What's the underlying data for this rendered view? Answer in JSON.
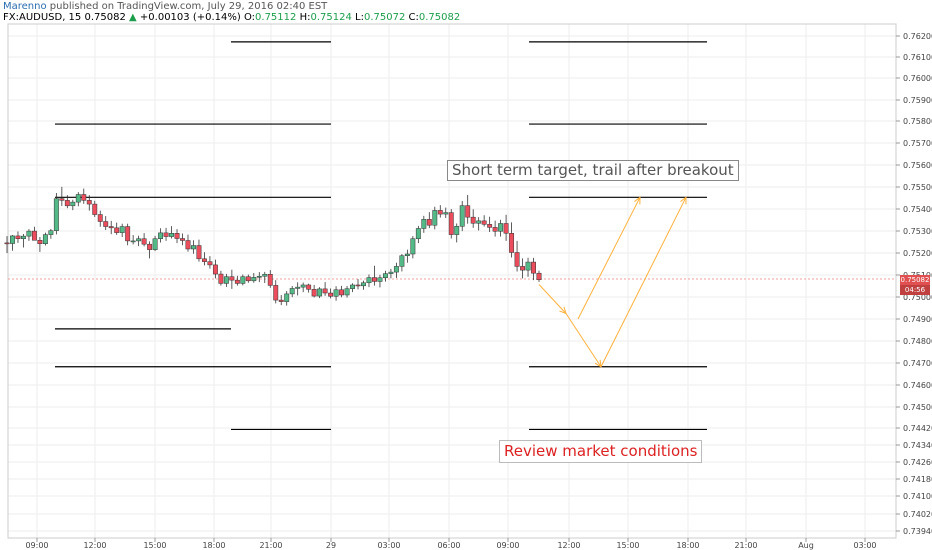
{
  "header": {
    "author": "Marenno",
    "published": "published on TradingView.com, July 29, 2016 02:40 EST",
    "symbol": "FX:AUDUSD, 15",
    "last": "0.75082",
    "arrow": "▲",
    "change": "+0.00103 (+0.14%)",
    "o_label": "O:",
    "o_value": "0.75112",
    "h_label": "H:",
    "h_value": "0.75124",
    "l_label": "L:",
    "l_value": "0.75072",
    "c_label": "C:",
    "c_value": "0.75082"
  },
  "annotations": {
    "target": "Short term target, trail after breakout",
    "review": "Review market conditions"
  },
  "price_badge": {
    "price": "0.75082",
    "countdown": "04:56"
  },
  "colors": {
    "up": "#53b987",
    "down": "#eb4d5c",
    "arrow": "#ffb13b",
    "level": "#000000",
    "grid": "#eeeeee"
  },
  "chart_data": {
    "type": "candlestick",
    "y_ticks": [
      "0.76200",
      "0.76100",
      "0.76000",
      "0.75900",
      "0.75800",
      "0.75700",
      "0.75600",
      "0.75500",
      "0.75400",
      "0.75300",
      "0.75200",
      "0.75100",
      "0.75000",
      "0.74900",
      "0.74800",
      "0.74700",
      "0.74600",
      "0.74500",
      "0.74420",
      "0.74340",
      "0.74260",
      "0.74180",
      "0.74100",
      "0.74020",
      "0.73940"
    ],
    "x_ticks": [
      "09:00",
      "12:00",
      "15:00",
      "18:00",
      "21:00",
      "29",
      "03:00",
      "06:00",
      "09:00",
      "12:00",
      "15:00",
      "18:00",
      "21:00",
      "Aug",
      "03:00"
    ],
    "horizontal_levels": [
      {
        "price": 0.76173,
        "from": "17:30",
        "to": "29"
      },
      {
        "price": 0.76173,
        "from": "09:00",
        "to": "18:00"
      },
      {
        "price": 0.75796,
        "from": "10:00",
        "to": "29"
      },
      {
        "price": 0.75796,
        "from": "09:00",
        "to": "18:00"
      },
      {
        "price": 0.7546,
        "from": "10:00",
        "to": "29"
      },
      {
        "price": 0.7546,
        "from": "09:00",
        "to": "18:00"
      },
      {
        "price": 0.74855,
        "from": "10:00",
        "to": "17:30"
      },
      {
        "price": 0.74683,
        "from": "10:00",
        "to": "29"
      },
      {
        "price": 0.74683,
        "from": "09:00",
        "to": "18:00"
      },
      {
        "price": 0.74398,
        "from": "17:30",
        "to": "29"
      },
      {
        "price": 0.74398,
        "from": "09:00",
        "to": "18:00"
      }
    ],
    "candles": [
      [
        0.75251,
        0.75282,
        0.75204,
        0.75248
      ],
      [
        0.75248,
        0.75287,
        0.75215,
        0.75283
      ],
      [
        0.75283,
        0.75303,
        0.75251,
        0.7527
      ],
      [
        0.7527,
        0.75292,
        0.7523,
        0.75282
      ],
      [
        0.75282,
        0.75314,
        0.7526,
        0.75305
      ],
      [
        0.75305,
        0.75325,
        0.75265,
        0.75263
      ],
      [
        0.75263,
        0.75278,
        0.7521,
        0.75247
      ],
      [
        0.75247,
        0.75298,
        0.75239,
        0.75289
      ],
      [
        0.75289,
        0.75315,
        0.7527,
        0.75307
      ],
      [
        0.75307,
        0.7548,
        0.7529,
        0.75454
      ],
      [
        0.75454,
        0.75508,
        0.7542,
        0.75446
      ],
      [
        0.75446,
        0.7547,
        0.7541,
        0.75421
      ],
      [
        0.75421,
        0.75449,
        0.75401,
        0.75438
      ],
      [
        0.75438,
        0.75484,
        0.75419,
        0.75473
      ],
      [
        0.75473,
        0.755,
        0.7543,
        0.75446
      ],
      [
        0.75446,
        0.7547,
        0.75399,
        0.75429
      ],
      [
        0.75429,
        0.75444,
        0.7537,
        0.75381
      ],
      [
        0.75381,
        0.75399,
        0.75325,
        0.75349
      ],
      [
        0.75349,
        0.75374,
        0.7531,
        0.75326
      ],
      [
        0.75326,
        0.75352,
        0.75291,
        0.7532
      ],
      [
        0.7532,
        0.75344,
        0.75288,
        0.75298
      ],
      [
        0.75298,
        0.75339,
        0.75278,
        0.75326
      ],
      [
        0.75326,
        0.75339,
        0.7524,
        0.7526
      ],
      [
        0.7526,
        0.75287,
        0.75244,
        0.7526
      ],
      [
        0.7526,
        0.75284,
        0.75236,
        0.7527
      ],
      [
        0.7527,
        0.75296,
        0.75235,
        0.75245
      ],
      [
        0.75245,
        0.75258,
        0.7518,
        0.7522
      ],
      [
        0.7522,
        0.75283,
        0.75213,
        0.7527
      ],
      [
        0.7527,
        0.75318,
        0.75253,
        0.75297
      ],
      [
        0.75297,
        0.7532,
        0.7526,
        0.7528
      ],
      [
        0.7528,
        0.75328,
        0.75271,
        0.75295
      ],
      [
        0.75295,
        0.75314,
        0.7525,
        0.75271
      ],
      [
        0.75271,
        0.75294,
        0.7524,
        0.75262
      ],
      [
        0.75262,
        0.75289,
        0.75211,
        0.75223
      ],
      [
        0.75223,
        0.75263,
        0.75201,
        0.75239
      ],
      [
        0.75239,
        0.75266,
        0.75165,
        0.75178
      ],
      [
        0.75178,
        0.75208,
        0.75148,
        0.75165
      ],
      [
        0.75165,
        0.7519,
        0.75133,
        0.7515
      ],
      [
        0.7515,
        0.75174,
        0.75088,
        0.75108
      ],
      [
        0.75108,
        0.75123,
        0.75055,
        0.75065
      ],
      [
        0.75065,
        0.75109,
        0.75049,
        0.75096
      ],
      [
        0.75096,
        0.75128,
        0.7504,
        0.7508
      ],
      [
        0.7508,
        0.751,
        0.75055,
        0.75065
      ],
      [
        0.75065,
        0.75106,
        0.75056,
        0.75096
      ],
      [
        0.75096,
        0.75106,
        0.75068,
        0.75077
      ],
      [
        0.75077,
        0.75113,
        0.75068,
        0.75093
      ],
      [
        0.75093,
        0.75117,
        0.75071,
        0.75098
      ],
      [
        0.75098,
        0.75118,
        0.75067,
        0.75107
      ],
      [
        0.75107,
        0.75126,
        0.75045,
        0.75056
      ],
      [
        0.75056,
        0.7508,
        0.74971,
        0.74986
      ],
      [
        0.74986,
        0.75012,
        0.74963,
        0.74979
      ],
      [
        0.74979,
        0.7503,
        0.74961,
        0.75017
      ],
      [
        0.75017,
        0.75053,
        0.75002,
        0.75042
      ],
      [
        0.75042,
        0.7507,
        0.7501,
        0.75048
      ],
      [
        0.75048,
        0.75069,
        0.75025,
        0.75058
      ],
      [
        0.75058,
        0.75064,
        0.75023,
        0.75038
      ],
      [
        0.75038,
        0.75058,
        0.74998,
        0.75007
      ],
      [
        0.75007,
        0.75048,
        0.74995,
        0.7504
      ],
      [
        0.7504,
        0.75071,
        0.75008,
        0.75021
      ],
      [
        0.75021,
        0.75042,
        0.74994,
        0.75006
      ],
      [
        0.75006,
        0.75052,
        0.74983,
        0.75036
      ],
      [
        0.75036,
        0.75054,
        0.74999,
        0.75012
      ],
      [
        0.75012,
        0.75053,
        0.75,
        0.75041
      ],
      [
        0.75041,
        0.75066,
        0.75025,
        0.75058
      ],
      [
        0.75058,
        0.75085,
        0.75038,
        0.75054
      ],
      [
        0.75054,
        0.75078,
        0.75036,
        0.75068
      ],
      [
        0.75068,
        0.75106,
        0.75048,
        0.75092
      ],
      [
        0.75092,
        0.75146,
        0.75055,
        0.75074
      ],
      [
        0.75074,
        0.75105,
        0.75047,
        0.75091
      ],
      [
        0.75091,
        0.75123,
        0.75073,
        0.7511
      ],
      [
        0.7511,
        0.75132,
        0.75088,
        0.75117
      ],
      [
        0.75117,
        0.7516,
        0.7509,
        0.75143
      ],
      [
        0.75143,
        0.752,
        0.7512,
        0.75192
      ],
      [
        0.75192,
        0.7522,
        0.7516,
        0.752
      ],
      [
        0.752,
        0.75282,
        0.7518,
        0.7527
      ],
      [
        0.7527,
        0.75329,
        0.7525,
        0.75317
      ],
      [
        0.75317,
        0.75375,
        0.75297,
        0.75359
      ],
      [
        0.75359,
        0.75392,
        0.75319,
        0.75332
      ],
      [
        0.75332,
        0.75417,
        0.75313,
        0.754
      ],
      [
        0.754,
        0.75424,
        0.75367,
        0.75383
      ],
      [
        0.75383,
        0.75413,
        0.75365,
        0.7539
      ],
      [
        0.7539,
        0.75406,
        0.75271,
        0.75289
      ],
      [
        0.75289,
        0.7534,
        0.75253,
        0.75327
      ],
      [
        0.75327,
        0.75443,
        0.75305,
        0.75422
      ],
      [
        0.75422,
        0.75471,
        0.75339,
        0.75369
      ],
      [
        0.75369,
        0.75405,
        0.7532,
        0.75341
      ],
      [
        0.75341,
        0.75369,
        0.75308,
        0.75352
      ],
      [
        0.75352,
        0.75378,
        0.75326,
        0.75336
      ],
      [
        0.75336,
        0.75371,
        0.75301,
        0.75322
      ],
      [
        0.75322,
        0.75353,
        0.7528,
        0.75304
      ],
      [
        0.75304,
        0.75357,
        0.7528,
        0.7534
      ],
      [
        0.7534,
        0.7538,
        0.7526,
        0.75295
      ],
      [
        0.75295,
        0.75345,
        0.75184,
        0.75207
      ],
      [
        0.75207,
        0.7526,
        0.7512,
        0.75143
      ],
      [
        0.75143,
        0.7518,
        0.75088,
        0.75126
      ],
      [
        0.75126,
        0.75183,
        0.75095,
        0.75163
      ],
      [
        0.75163,
        0.75182,
        0.7508,
        0.75112
      ],
      [
        0.75112,
        0.75124,
        0.75072,
        0.75082
      ]
    ],
    "projection_arrows": [
      {
        "from": [
          0.7506,
          "12:00"
        ],
        "to": [
          0.74925,
          "13:00"
        ]
      },
      {
        "from": [
          0.74925,
          "13:00"
        ],
        "to": [
          0.74683,
          "14:30"
        ]
      },
      {
        "from": [
          0.749,
          "13:30"
        ],
        "to": [
          0.7546,
          "15:30"
        ]
      },
      {
        "from": [
          0.74683,
          "14:30"
        ],
        "to": [
          0.7546,
          "17:30"
        ]
      }
    ]
  }
}
